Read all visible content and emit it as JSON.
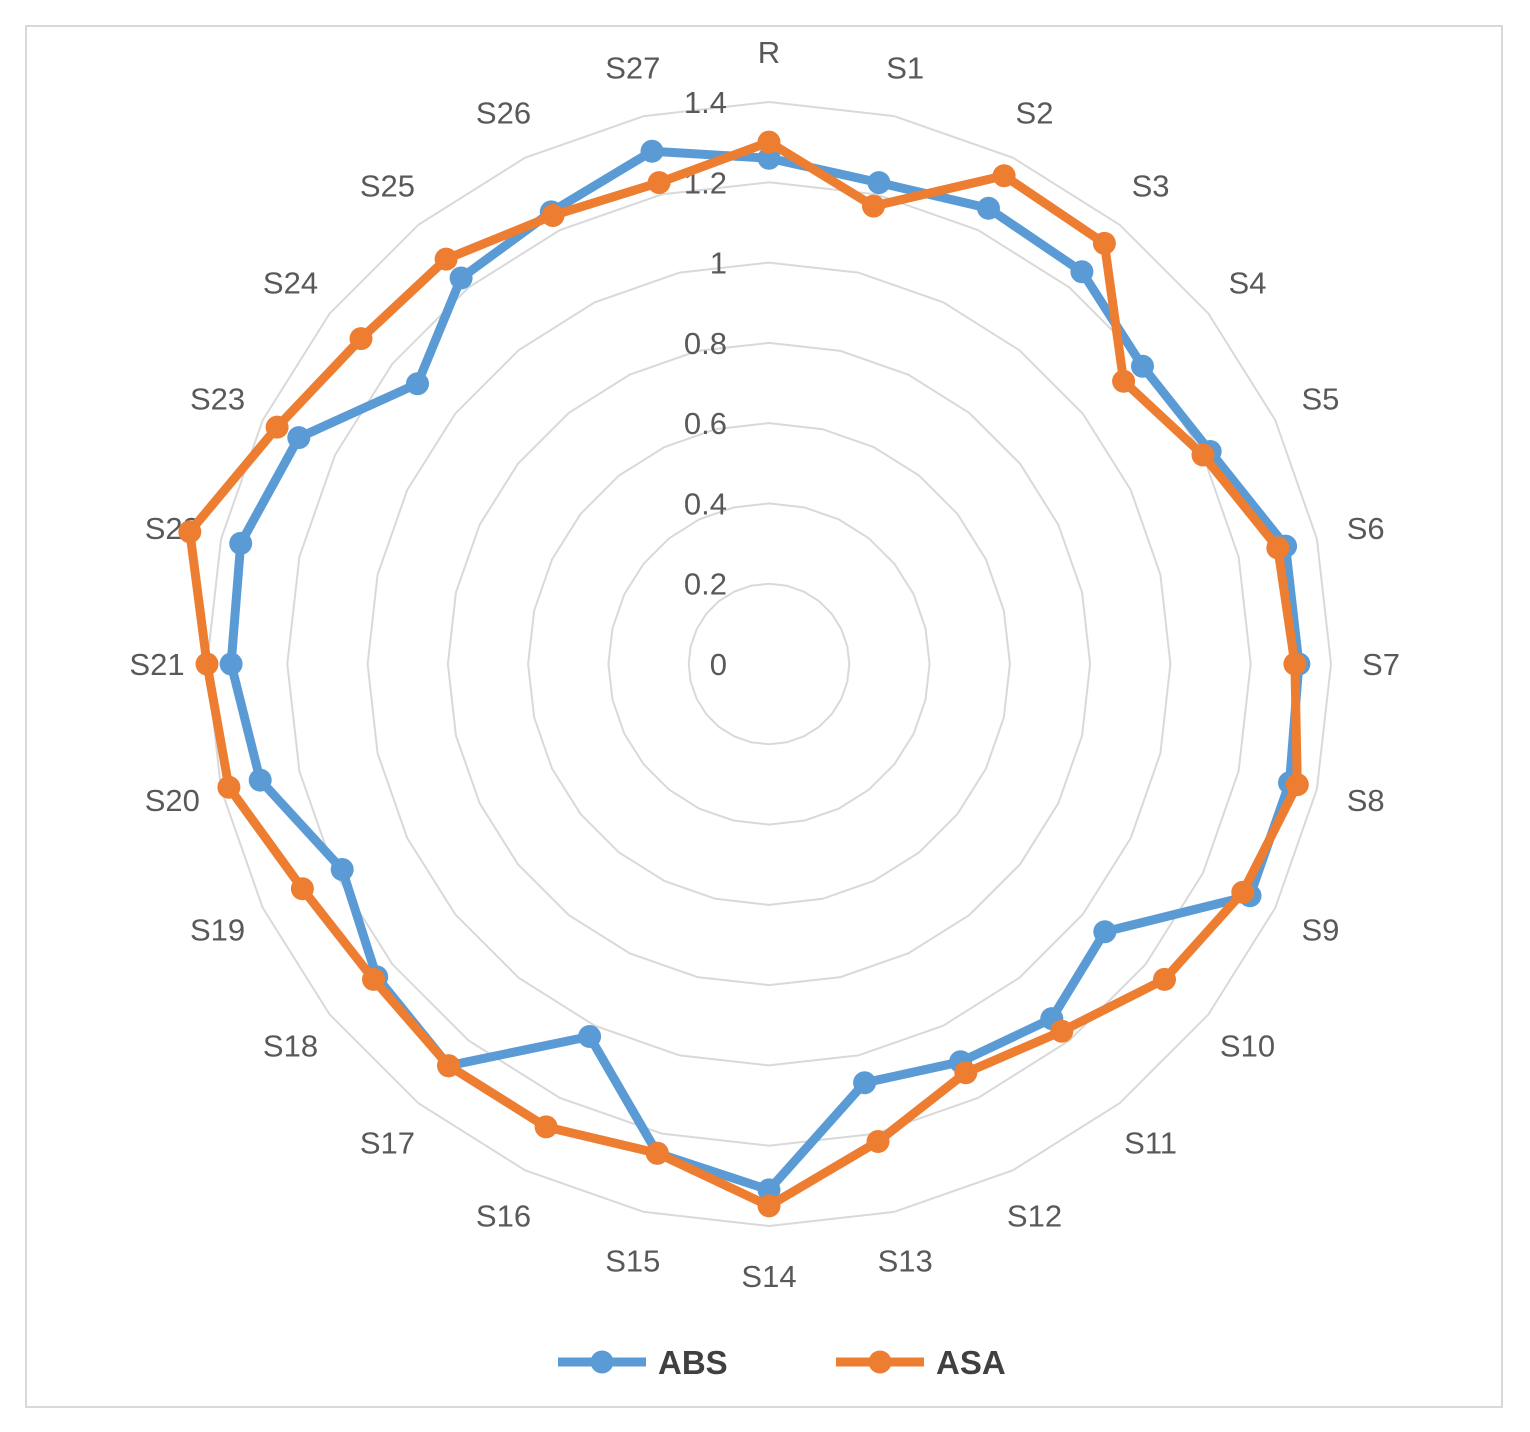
{
  "chart_data": {
    "type": "radar",
    "categories": [
      "R",
      "S1",
      "S2",
      "S3",
      "S4",
      "S5",
      "S6",
      "S7",
      "S8",
      "S9",
      "S10",
      "S11",
      "S12",
      "S13",
      "S14",
      "S15",
      "S16",
      "S17",
      "S18",
      "S19",
      "S20",
      "S21",
      "S22",
      "S23",
      "S24",
      "S25",
      "S26",
      "S27"
    ],
    "series": [
      {
        "name": "ABS",
        "color": "#5b9bd5",
        "values": [
          1.26,
          1.23,
          1.26,
          1.25,
          1.19,
          1.22,
          1.32,
          1.32,
          1.33,
          1.33,
          1.07,
          1.13,
          1.1,
          1.07,
          1.31,
          1.25,
          1.03,
          1.28,
          1.25,
          1.18,
          1.3,
          1.34,
          1.35,
          1.3,
          1.12,
          1.23,
          1.25,
          1.31
        ]
      },
      {
        "name": "ASA",
        "color": "#ed7d31",
        "values": [
          1.3,
          1.17,
          1.35,
          1.34,
          1.13,
          1.2,
          1.3,
          1.31,
          1.35,
          1.31,
          1.26,
          1.17,
          1.13,
          1.22,
          1.35,
          1.25,
          1.28,
          1.28,
          1.26,
          1.29,
          1.38,
          1.4,
          1.48,
          1.36,
          1.3,
          1.29,
          1.24,
          1.23
        ]
      }
    ],
    "rlim": [
      0,
      1.4
    ],
    "ticks": [
      "0",
      "0.2",
      "0.4",
      "0.6",
      "0.8",
      "1",
      "1.2",
      "1.4"
    ],
    "grid": true,
    "legend": "bottom"
  }
}
